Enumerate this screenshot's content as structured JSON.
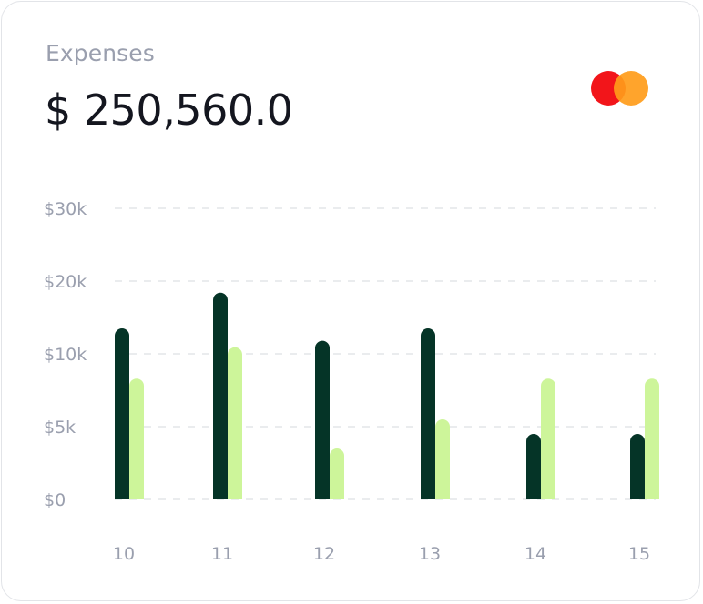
{
  "card": {
    "title": "Expenses",
    "amount": "$ 250,560.0",
    "brand_icon": "mastercard-logo"
  },
  "colors": {
    "series_dark": "#053427",
    "series_light": "#cdf59a",
    "logo_red": "#f2151a",
    "logo_orange": "#ff9c1a",
    "grid": "#e3e5e9"
  },
  "chart_data": {
    "type": "bar",
    "categories": [
      "10",
      "11",
      "12",
      "13",
      "14",
      "15"
    ],
    "y_tick_labels": [
      "$0",
      "$5k",
      "$10k",
      "$20k",
      "$30k"
    ],
    "series": [
      {
        "values": [
          13500,
          18400,
          11800,
          13500,
          4500,
          4500
        ]
      },
      {
        "values": [
          8300,
          10900,
          3500,
          5500,
          8300,
          8300
        ]
      }
    ],
    "grid": true,
    "y_axis": "nonlinear: $0, $5k, $10k, $20k, $30k evenly spaced"
  }
}
